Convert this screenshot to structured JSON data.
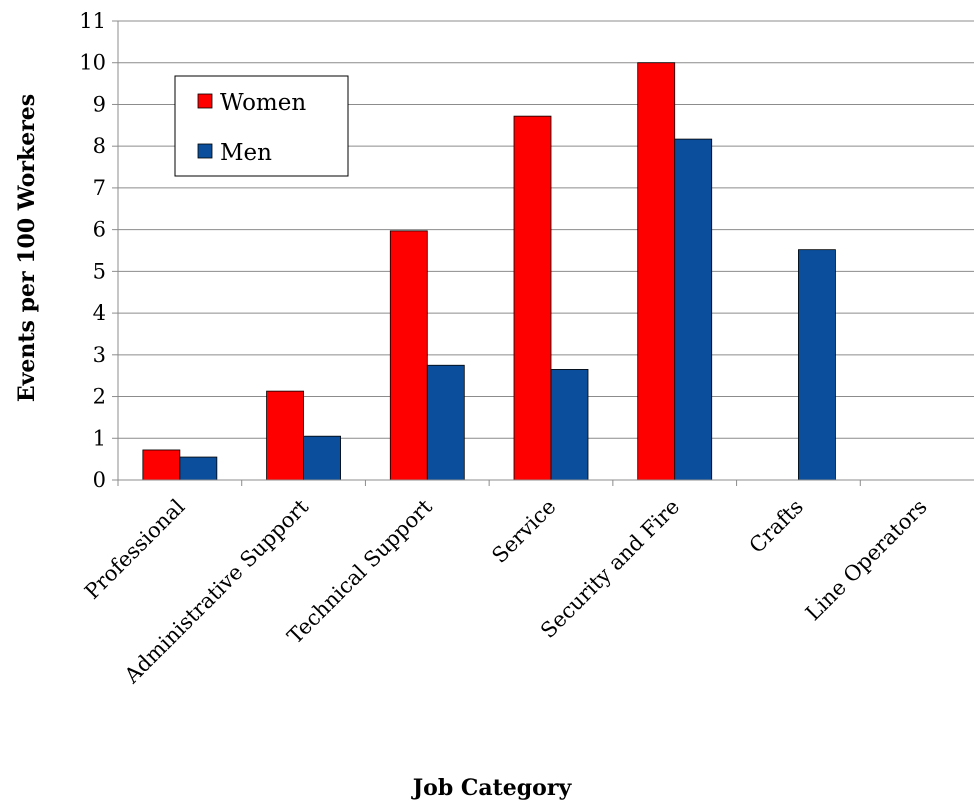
{
  "chart_data": {
    "type": "bar",
    "title": "",
    "xlabel": "Job Category",
    "ylabel": "Events per 100 Workeres",
    "ylim": [
      0,
      11
    ],
    "yticks": [
      0,
      1,
      2,
      3,
      4,
      5,
      6,
      7,
      8,
      9,
      10,
      11
    ],
    "grid": true,
    "legend": {
      "position": "top-left",
      "entries": [
        "Women",
        "Men"
      ]
    },
    "categories": [
      "Professional",
      "Administrative Support",
      "Technical Support",
      "Service",
      "Security and Fire",
      "Crafts",
      "Line Operators"
    ],
    "series": [
      {
        "name": "Women",
        "color": "#ff0000",
        "values": [
          0.72,
          2.13,
          5.97,
          8.72,
          10.0,
          0,
          0
        ]
      },
      {
        "name": "Men",
        "color": "#0b4f9c",
        "values": [
          0.55,
          1.05,
          2.75,
          2.65,
          8.17,
          5.52,
          0
        ]
      }
    ]
  }
}
